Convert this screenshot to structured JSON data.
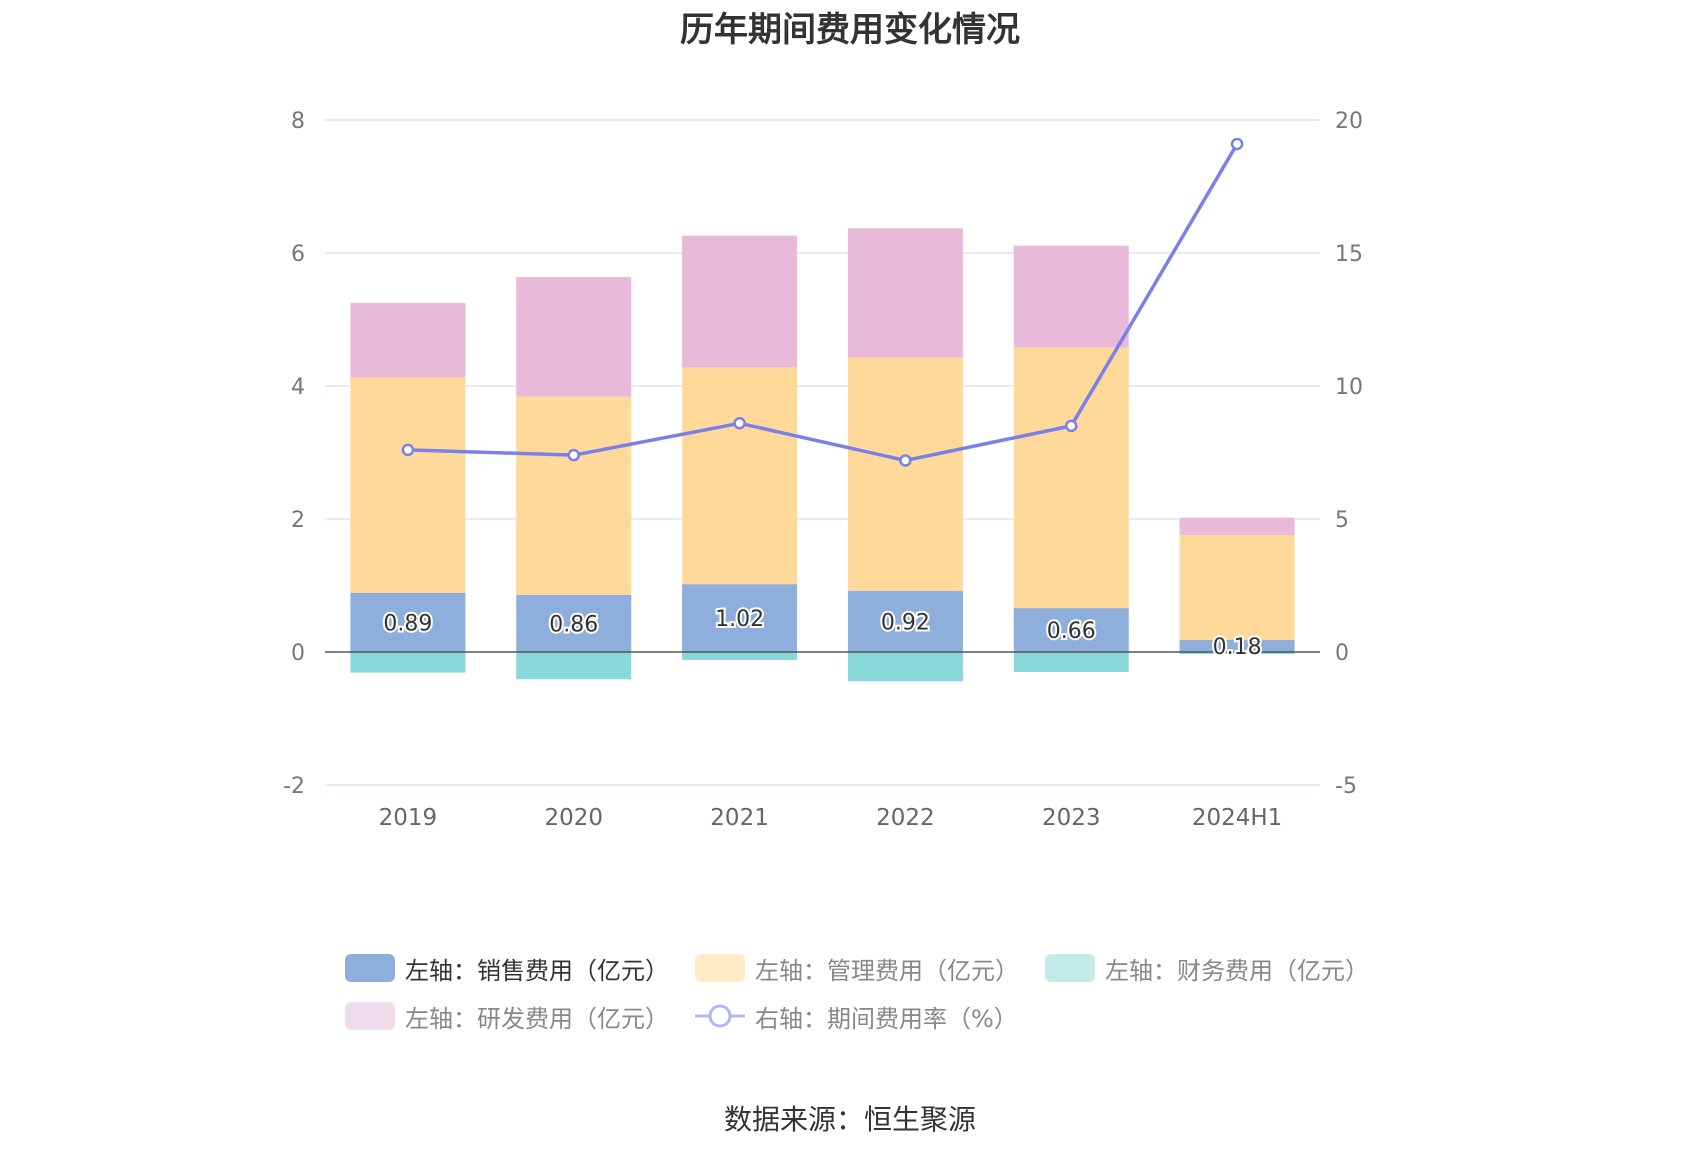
{
  "title": "历年期间费用变化情况",
  "source": "数据来源：恒生聚源",
  "chart_data": {
    "type": "bar",
    "stacked": true,
    "categories": [
      "2019",
      "2020",
      "2021",
      "2022",
      "2023",
      "2024H1"
    ],
    "left_axis": {
      "min": -2,
      "max": 8,
      "ticks": [
        8,
        6,
        4,
        2,
        0,
        -2
      ]
    },
    "right_axis": {
      "min": -5,
      "max": 20,
      "ticks": [
        20,
        15,
        10,
        5,
        0,
        -5
      ]
    },
    "grid": true,
    "legend_position": "bottom",
    "series": [
      {
        "name": "左轴：销售费用（亿元）",
        "axis": "left",
        "type": "bar",
        "color": "#8eaedb",
        "values": [
          0.89,
          0.86,
          1.02,
          0.92,
          0.66,
          0.18
        ],
        "labels_shown": true
      },
      {
        "name": "左轴：管理费用（亿元）",
        "axis": "left",
        "type": "bar",
        "color": "#ffd999",
        "values": [
          3.24,
          2.98,
          3.26,
          3.51,
          3.92,
          1.58
        ]
      },
      {
        "name": "左轴：财务费用（亿元）",
        "axis": "left",
        "type": "bar",
        "color": "#88d7d9",
        "values": [
          -0.31,
          -0.41,
          -0.12,
          -0.44,
          -0.3,
          -0.03
        ]
      },
      {
        "name": "左轴：研发费用（亿元）",
        "axis": "left",
        "type": "bar",
        "color": "#e8b9d8",
        "values": [
          1.12,
          1.8,
          1.98,
          1.94,
          1.53,
          0.26
        ]
      },
      {
        "name": "右轴：期间费用率（%）",
        "axis": "right",
        "type": "line",
        "color": "#7b7fe8",
        "values": [
          7.6,
          7.4,
          8.6,
          7.2,
          8.5,
          19.1
        ]
      }
    ]
  },
  "legend": [
    {
      "label": "左轴：销售费用（亿元）",
      "color": "#8eaedb",
      "kind": "box",
      "active": true
    },
    {
      "label": "左轴：管理费用（亿元）",
      "color": "#ffecc7",
      "kind": "box",
      "active": false
    },
    {
      "label": "左轴：财务费用（亿元）",
      "color": "#c4ebea",
      "kind": "box",
      "active": false
    },
    {
      "label": "左轴：研发费用（亿元）",
      "color": "#f1dcec",
      "kind": "box",
      "active": false
    },
    {
      "label": "右轴：期间费用率（%）",
      "color": "#b3b5f1",
      "kind": "line",
      "active": false
    }
  ]
}
